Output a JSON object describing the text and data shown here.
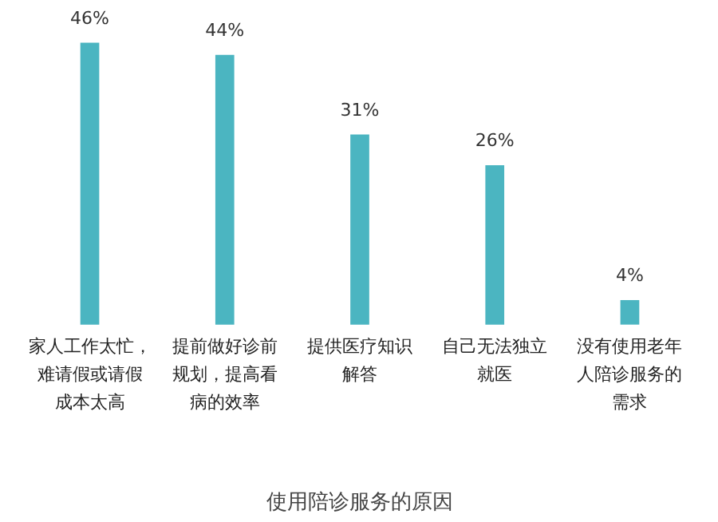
{
  "chart_data": {
    "type": "bar",
    "title": "使用陪诊服务的原因",
    "categories": [
      "家人工作太忙，难请假或请假成本太高",
      "提前做好诊前规划，提高看病的效率",
      "提供医疗知识解答",
      "自己无法独立就医",
      "没有使用老年人陪诊服务的需求"
    ],
    "values": [
      46,
      44,
      31,
      26,
      4
    ],
    "value_labels": [
      "46%",
      "44%",
      "31%",
      "26%",
      "4%"
    ],
    "color": "#4bb5c1"
  }
}
